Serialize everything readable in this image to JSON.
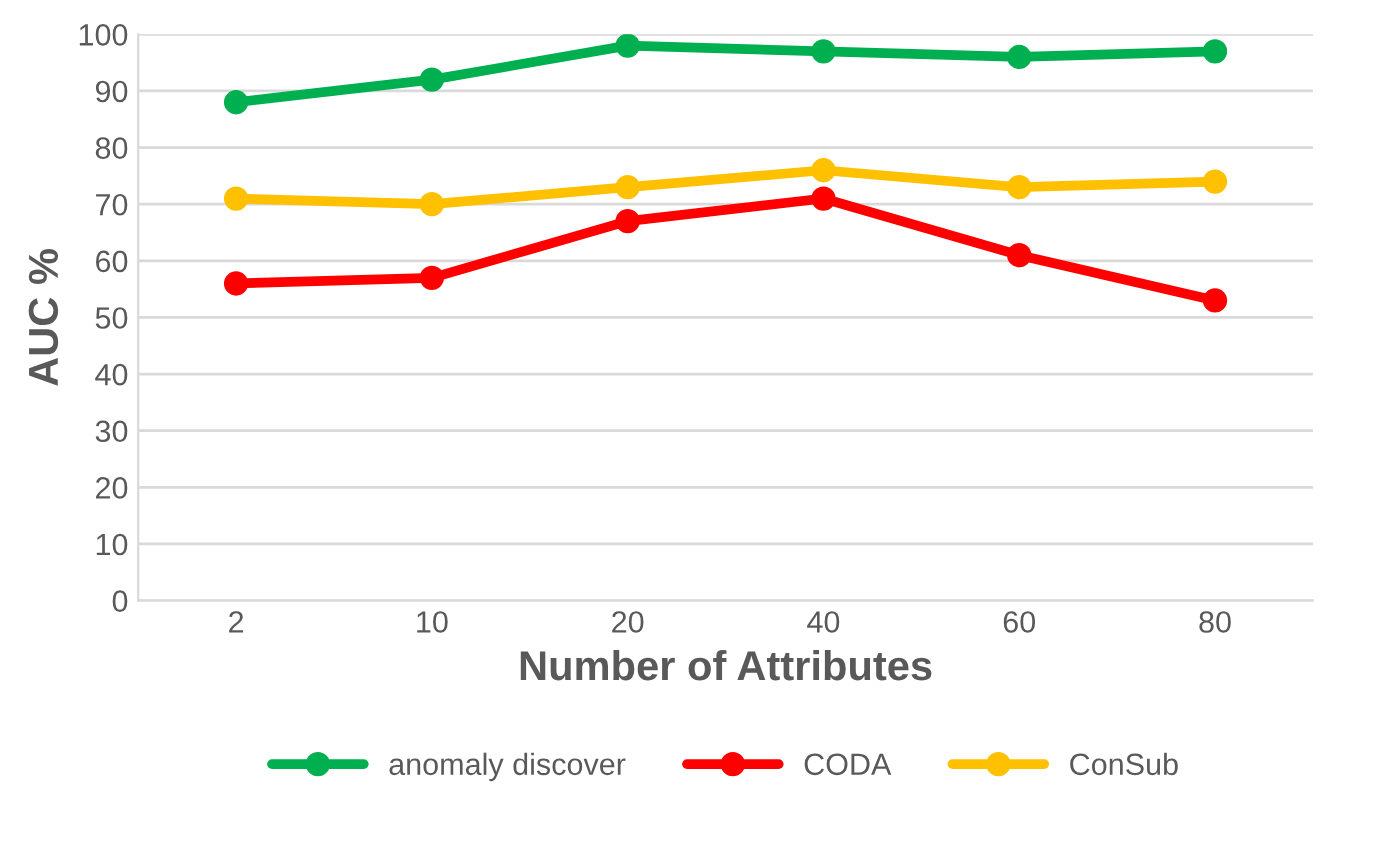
{
  "chart_data": {
    "type": "line",
    "xlabel": "Number of Attributes",
    "ylabel": "AUC %",
    "categories": [
      "2",
      "10",
      "20",
      "40",
      "60",
      "80"
    ],
    "series": [
      {
        "name": "anomaly discover",
        "color": "#00b050",
        "values": [
          88,
          92,
          98,
          97,
          96,
          97
        ]
      },
      {
        "name": "CODA",
        "color": "#ff0000",
        "values": [
          56,
          57,
          67,
          71,
          61,
          53
        ]
      },
      {
        "name": "ConSub",
        "color": "#ffc000",
        "values": [
          71,
          70,
          73,
          76,
          73,
          74
        ]
      }
    ],
    "ylim": [
      0,
      100
    ],
    "yticks": [
      0,
      10,
      20,
      30,
      40,
      50,
      60,
      70,
      80,
      90,
      100
    ],
    "grid": "y",
    "legend": "bottom",
    "marker": "circle",
    "line_style": "solid"
  }
}
